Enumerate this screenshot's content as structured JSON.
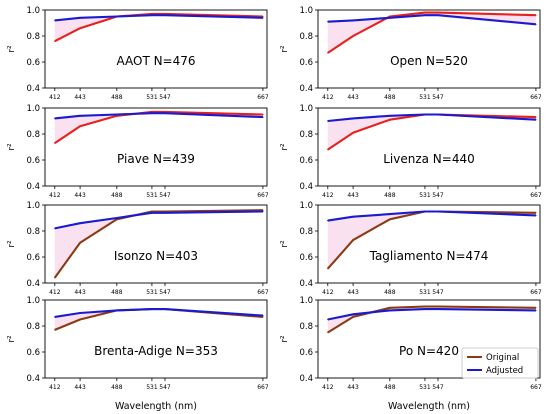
{
  "figure": {
    "ylabel": "r²",
    "xlabel": "Wavelength (nm)",
    "legend": {
      "original": "Original",
      "adjusted": "Adjusted",
      "placement": "lower-right of last panel"
    }
  },
  "colors": {
    "original_red": "#e8201c",
    "original_brown": "#8b3a12",
    "adjusted": "#1a1ad0",
    "band": "#f7d9ec"
  },
  "chart_data": [
    {
      "type": "line",
      "title": "AAOT N=476",
      "x": [
        412,
        443,
        488,
        531,
        547,
        667
      ],
      "ylim": [
        0.4,
        1.0
      ],
      "yticks": [
        "0.4",
        "0.6",
        "0.8",
        "1.0"
      ],
      "original_color": "original_red",
      "series": [
        {
          "name": "Original",
          "values": [
            0.76,
            0.86,
            0.95,
            0.97,
            0.97,
            0.95
          ]
        },
        {
          "name": "Adjusted",
          "values": [
            0.92,
            0.94,
            0.95,
            0.96,
            0.96,
            0.94
          ]
        }
      ]
    },
    {
      "type": "line",
      "title": "Open N=520",
      "x": [
        412,
        443,
        488,
        531,
        547,
        667
      ],
      "ylim": [
        0.4,
        1.0
      ],
      "yticks": [
        "0.4",
        "0.6",
        "0.8",
        "1.0"
      ],
      "original_color": "original_red",
      "series": [
        {
          "name": "Original",
          "values": [
            0.67,
            0.8,
            0.95,
            0.98,
            0.98,
            0.96
          ]
        },
        {
          "name": "Adjusted",
          "values": [
            0.91,
            0.92,
            0.94,
            0.96,
            0.96,
            0.89
          ]
        }
      ]
    },
    {
      "type": "line",
      "title": "Piave N=439",
      "x": [
        412,
        443,
        488,
        531,
        547,
        667
      ],
      "ylim": [
        0.4,
        1.0
      ],
      "yticks": [
        "0.4",
        "0.6",
        "0.8",
        "1.0"
      ],
      "original_color": "original_red",
      "series": [
        {
          "name": "Original",
          "values": [
            0.73,
            0.86,
            0.94,
            0.97,
            0.97,
            0.95
          ]
        },
        {
          "name": "Adjusted",
          "values": [
            0.92,
            0.94,
            0.95,
            0.96,
            0.96,
            0.93
          ]
        }
      ]
    },
    {
      "type": "line",
      "title": "Livenza N=440",
      "x": [
        412,
        443,
        488,
        531,
        547,
        667
      ],
      "ylim": [
        0.4,
        1.0
      ],
      "yticks": [
        "0.4",
        "0.6",
        "0.8",
        "1.0"
      ],
      "original_color": "original_red",
      "series": [
        {
          "name": "Original",
          "values": [
            0.68,
            0.81,
            0.91,
            0.95,
            0.95,
            0.93
          ]
        },
        {
          "name": "Adjusted",
          "values": [
            0.9,
            0.92,
            0.94,
            0.95,
            0.95,
            0.91
          ]
        }
      ]
    },
    {
      "type": "line",
      "title": "Isonzo N=403",
      "x": [
        412,
        443,
        488,
        531,
        547,
        667
      ],
      "ylim": [
        0.4,
        1.0
      ],
      "yticks": [
        "0.4",
        "0.6",
        "0.8",
        "1.0"
      ],
      "original_color": "original_brown",
      "series": [
        {
          "name": "Original",
          "values": [
            0.44,
            0.71,
            0.89,
            0.95,
            0.95,
            0.96
          ]
        },
        {
          "name": "Adjusted",
          "values": [
            0.82,
            0.86,
            0.9,
            0.94,
            0.94,
            0.95
          ]
        }
      ]
    },
    {
      "type": "line",
      "title": "Tagliamento N=474",
      "x": [
        412,
        443,
        488,
        531,
        547,
        667
      ],
      "ylim": [
        0.4,
        1.0
      ],
      "yticks": [
        "0.4",
        "0.6",
        "0.8",
        "1.0"
      ],
      "original_color": "original_brown",
      "series": [
        {
          "name": "Original",
          "values": [
            0.51,
            0.73,
            0.89,
            0.95,
            0.95,
            0.94
          ]
        },
        {
          "name": "Adjusted",
          "values": [
            0.88,
            0.91,
            0.93,
            0.95,
            0.95,
            0.92
          ]
        }
      ]
    },
    {
      "type": "line",
      "title": "Brenta-Adige N=353",
      "x": [
        412,
        443,
        488,
        531,
        547,
        667
      ],
      "ylim": [
        0.4,
        1.0
      ],
      "yticks": [
        "0.4",
        "0.6",
        "0.8",
        "1.0"
      ],
      "original_color": "original_brown",
      "series": [
        {
          "name": "Original",
          "values": [
            0.77,
            0.85,
            0.92,
            0.93,
            0.93,
            0.87
          ]
        },
        {
          "name": "Adjusted",
          "values": [
            0.87,
            0.9,
            0.92,
            0.93,
            0.93,
            0.88
          ]
        }
      ]
    },
    {
      "type": "line",
      "title": "Po N=420",
      "x": [
        412,
        443,
        488,
        531,
        547,
        667
      ],
      "ylim": [
        0.4,
        1.0
      ],
      "yticks": [
        "0.4",
        "0.6",
        "0.8",
        "1.0"
      ],
      "original_color": "original_brown",
      "series": [
        {
          "name": "Original",
          "values": [
            0.75,
            0.87,
            0.94,
            0.95,
            0.95,
            0.94
          ]
        },
        {
          "name": "Adjusted",
          "values": [
            0.85,
            0.89,
            0.92,
            0.93,
            0.93,
            0.92
          ]
        }
      ]
    }
  ]
}
